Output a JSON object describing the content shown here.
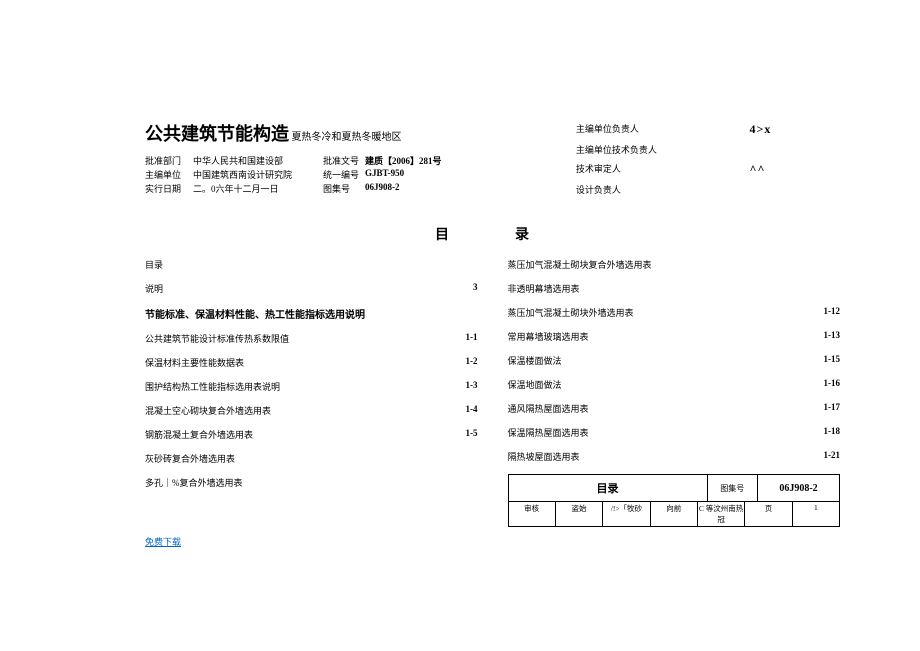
{
  "title": "公共建筑节能构造",
  "subtitle": "夏热冬冷和夏热冬暖地区",
  "approval": {
    "row1": {
      "l1": "批准部门",
      "v1": "中华人民共和国建设部",
      "l2": "批准文号",
      "v2": "建质【2006】281号"
    },
    "row2": {
      "l1": "主编单位",
      "v1": "中国建筑西南设计研究院",
      "l2": "统一编号",
      "v2": "GJBT-950"
    },
    "row3": {
      "l1": "实行日期",
      "v1": "二。0六年十二月一日",
      "l2": "图集号",
      "v2": "06J908-2"
    }
  },
  "responsible": {
    "r1": {
      "l": "主编单位负责人",
      "v": "4>x"
    },
    "r2": {
      "l": "主编单位技术负责人",
      "v": ""
    },
    "r3": {
      "l": "技术审定人",
      "v": "^^"
    },
    "r4": {
      "l": "设计负责人",
      "v": ""
    }
  },
  "toc_heading_left": "目",
  "toc_heading_right": "录",
  "left_col": [
    {
      "t": "目录",
      "p": ""
    },
    {
      "t": "说明",
      "p": "3"
    },
    {
      "t": "节能标准、保温材料性能、热工性能指标选用说明",
      "p": "",
      "section": true
    },
    {
      "t": "公共建筑节能设计标准传热系数限值",
      "p": "1-1"
    },
    {
      "t": "保温材料主要性能数据表",
      "p": "1-2"
    },
    {
      "t": "围护结构热工性能指标选用表说明",
      "p": "1-3"
    },
    {
      "t": "混凝土空心砌块复合外墙选用表",
      "p": "1-4"
    },
    {
      "t": "钢筋混凝土复合外墙选用表",
      "p": "1-5"
    },
    {
      "t": "灰砂砖复合外墙选用表",
      "p": ""
    },
    {
      "t": "多孔｜%复合外墙选用表",
      "p": ""
    }
  ],
  "right_col": [
    {
      "t": "蒸压加气混凝土砌块复合外墙选用表",
      "p": ""
    },
    {
      "t": "非透明幕墙选用表",
      "p": ""
    },
    {
      "t": "蒸压加气混凝土砌块外墙选用表",
      "p": "1-12"
    },
    {
      "t": "常用幕墙玻璃选用表",
      "p": "1-13"
    },
    {
      "t": "保温楼面做法",
      "p": "1-15"
    },
    {
      "t": "保温地面做法",
      "p": "1-16"
    },
    {
      "t": "通风隔热屋面选用表",
      "p": "1-17"
    },
    {
      "t": "保温隔热屋面选用表",
      "p": "1-18"
    },
    {
      "t": "隔热坡屋面选用表",
      "p": "1-21"
    }
  ],
  "infobox": {
    "title": "目录",
    "set_lbl": "图集号",
    "set_val": "06J908-2",
    "bot": [
      "审核",
      "盗始",
      "/!>「牧砂",
      "向前",
      "C 等汶州南热冠",
      "页",
      "1"
    ]
  },
  "download": "免费下载"
}
